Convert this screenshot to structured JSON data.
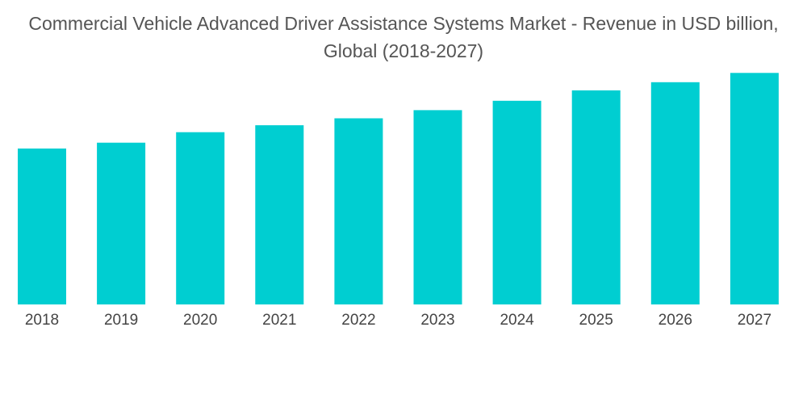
{
  "chart_data": {
    "type": "bar",
    "title_lines": [
      "Commercial Vehicle Advanced Driver Assistance Systems Market - Revenue in USD billion,",
      "Global (2018-2027)"
    ],
    "categories": [
      "2018",
      "2019",
      "2020",
      "2021",
      "2022",
      "2023",
      "2024",
      "2025",
      "2026",
      "2027"
    ],
    "values": [
      13.4,
      13.9,
      14.8,
      15.4,
      16.0,
      16.7,
      17.5,
      18.4,
      19.1,
      19.9
    ],
    "xlabel": "",
    "ylabel": "",
    "ylim": [
      0,
      22
    ],
    "grid": false,
    "legend": "none",
    "bar_color": "#00CED1"
  }
}
